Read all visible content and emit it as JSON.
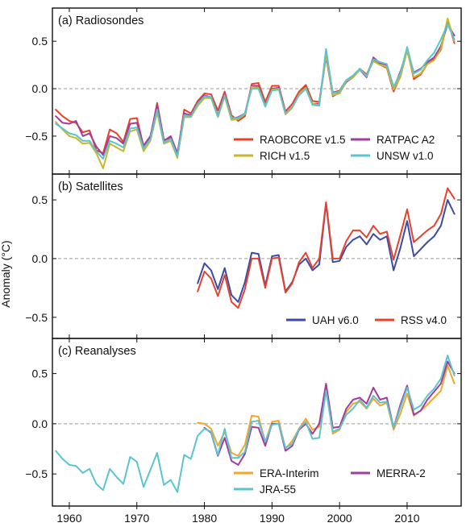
{
  "figure": {
    "ylabel": "Anomaly (°C)",
    "x_ticks": [
      1960,
      1970,
      1980,
      1990,
      2000,
      2010
    ],
    "xlim": [
      1957.5,
      2018
    ]
  },
  "chart_data": [
    {
      "type": "line",
      "title": "(a) Radiosondes",
      "ylim": [
        -0.9,
        0.85
      ],
      "y_ticks": [
        -0.5,
        0.0,
        0.5
      ],
      "y_tick_labels": [
        "−0.5",
        "0.0",
        "0.5"
      ],
      "zero_line": true,
      "legend": "bottom-right",
      "series": [
        {
          "name": "RAOBCORE v1.5",
          "color": "#e8412b",
          "start": 1958,
          "values": [
            -0.22,
            -0.29,
            -0.34,
            -0.36,
            -0.46,
            -0.44,
            -0.65,
            -0.68,
            -0.43,
            -0.47,
            -0.56,
            -0.32,
            -0.31,
            -0.61,
            -0.52,
            -0.15,
            -0.54,
            -0.52,
            -0.7,
            -0.22,
            -0.26,
            -0.13,
            -0.05,
            -0.06,
            -0.23,
            -0.03,
            -0.28,
            -0.34,
            -0.29,
            0.05,
            0.06,
            -0.14,
            0.03,
            0.03,
            -0.24,
            -0.16,
            -0.03,
            0.04,
            -0.13,
            -0.14,
            0.36,
            -0.04,
            -0.02,
            0.09,
            0.13,
            0.21,
            0.15,
            0.3,
            0.25,
            0.22,
            -0.03,
            0.13,
            0.42,
            0.1,
            0.15,
            0.26,
            0.31,
            0.41,
            0.73,
            0.48
          ]
        },
        {
          "name": "RATPAC A2",
          "color": "#a23d9e",
          "start": 1958,
          "values": [
            -0.29,
            -0.36,
            -0.37,
            -0.34,
            -0.5,
            -0.47,
            -0.61,
            -0.7,
            -0.5,
            -0.52,
            -0.58,
            -0.37,
            -0.36,
            -0.6,
            -0.5,
            -0.18,
            -0.55,
            -0.5,
            -0.68,
            -0.26,
            -0.28,
            -0.15,
            -0.07,
            -0.09,
            -0.28,
            -0.06,
            -0.32,
            -0.3,
            -0.26,
            0.03,
            0.03,
            -0.17,
            0.0,
            0.01,
            -0.27,
            -0.2,
            -0.06,
            0.02,
            -0.16,
            -0.16,
            0.34,
            -0.08,
            -0.04,
            0.07,
            0.12,
            0.2,
            0.12,
            0.33,
            0.27,
            0.25,
            0.0,
            0.18,
            0.4,
            0.17,
            0.21,
            0.28,
            0.33,
            0.45,
            0.68,
            0.56
          ]
        },
        {
          "name": "RICH v1.5",
          "color": "#c9b62a",
          "start": 1958,
          "values": [
            -0.35,
            -0.43,
            -0.5,
            -0.52,
            -0.58,
            -0.57,
            -0.68,
            -0.84,
            -0.58,
            -0.62,
            -0.66,
            -0.45,
            -0.43,
            -0.66,
            -0.55,
            -0.25,
            -0.58,
            -0.55,
            -0.73,
            -0.3,
            -0.3,
            -0.18,
            -0.1,
            -0.1,
            -0.3,
            -0.08,
            -0.33,
            -0.32,
            -0.27,
            0.02,
            0.01,
            -0.18,
            -0.01,
            0.0,
            -0.27,
            -0.2,
            -0.06,
            0.01,
            -0.16,
            -0.17,
            0.36,
            -0.07,
            -0.05,
            0.08,
            0.12,
            0.2,
            0.14,
            0.29,
            0.25,
            0.23,
            -0.01,
            0.12,
            0.4,
            0.12,
            0.16,
            0.26,
            0.3,
            0.42,
            0.74,
            0.5
          ]
        },
        {
          "name": "UNSW v1.0",
          "color": "#5ac4d0",
          "start": 1958,
          "values": [
            -0.37,
            -0.42,
            -0.47,
            -0.49,
            -0.55,
            -0.55,
            -0.66,
            -0.74,
            -0.55,
            -0.58,
            -0.62,
            -0.42,
            -0.41,
            -0.63,
            -0.53,
            -0.22,
            -0.57,
            -0.53,
            -0.71,
            -0.28,
            -0.29,
            -0.16,
            -0.08,
            -0.09,
            -0.29,
            -0.07,
            -0.31,
            -0.31,
            -0.26,
            0.0,
            0.0,
            -0.19,
            -0.02,
            -0.01,
            -0.26,
            -0.19,
            -0.07,
            0.0,
            -0.17,
            -0.18,
            0.42,
            -0.05,
            -0.03,
            0.09,
            0.14,
            0.21,
            0.13,
            0.31,
            0.28,
            0.26,
            0.02,
            0.16,
            0.44,
            0.16,
            0.2,
            0.3,
            0.38,
            0.52,
            0.68,
            0.52
          ]
        }
      ]
    },
    {
      "type": "line",
      "title": "(b) Satellites",
      "ylim": [
        -0.68,
        0.72
      ],
      "y_ticks": [
        -0.5,
        0.0,
        0.5
      ],
      "y_tick_labels": [
        "−0.5",
        "0.0",
        "0.5"
      ],
      "zero_line": true,
      "legend": "bottom-right",
      "series": [
        {
          "name": "UAH v6.0",
          "color": "#3b4ba8",
          "start": 1979,
          "values": [
            -0.21,
            -0.04,
            -0.1,
            -0.26,
            -0.08,
            -0.31,
            -0.37,
            -0.2,
            0.05,
            0.04,
            -0.23,
            0.02,
            0.03,
            -0.28,
            -0.2,
            -0.05,
            0.0,
            -0.1,
            -0.05,
            0.47,
            -0.03,
            -0.02,
            0.1,
            0.16,
            0.19,
            0.12,
            0.21,
            0.16,
            0.19,
            -0.1,
            0.09,
            0.32,
            0.02,
            0.08,
            0.14,
            0.19,
            0.28,
            0.5,
            0.38
          ]
        },
        {
          "name": "RSS v4.0",
          "color": "#e8412b",
          "start": 1979,
          "values": [
            -0.28,
            -0.11,
            -0.17,
            -0.32,
            -0.14,
            -0.37,
            -0.42,
            -0.26,
            0.0,
            0.0,
            -0.25,
            0.0,
            0.01,
            -0.29,
            -0.21,
            -0.03,
            0.05,
            -0.08,
            0.0,
            0.48,
            0.0,
            0.0,
            0.15,
            0.24,
            0.24,
            0.18,
            0.28,
            0.21,
            0.23,
            -0.01,
            0.2,
            0.42,
            0.14,
            0.19,
            0.24,
            0.28,
            0.38,
            0.6,
            0.51
          ]
        }
      ]
    },
    {
      "type": "line",
      "title": "(c) Reanalyses",
      "ylim": [
        -0.82,
        0.85
      ],
      "y_ticks": [
        -0.5,
        0.0,
        0.5
      ],
      "y_tick_labels": [
        "−0.5",
        "0.0",
        "0.5"
      ],
      "zero_line": true,
      "legend": "bottom-right",
      "series": [
        {
          "name": "ERA-Interim",
          "color": "#f0a72a",
          "start": 1979,
          "values": [
            0.01,
            0.0,
            -0.05,
            -0.22,
            -0.08,
            -0.29,
            -0.32,
            -0.21,
            0.08,
            0.07,
            -0.18,
            0.02,
            0.03,
            -0.25,
            -0.17,
            -0.05,
            0.05,
            -0.06,
            -0.03,
            0.35,
            -0.1,
            -0.06,
            0.12,
            0.2,
            0.22,
            0.15,
            0.25,
            0.18,
            0.21,
            -0.06,
            0.1,
            0.3,
            0.08,
            0.13,
            0.19,
            0.26,
            0.33,
            0.58,
            0.4
          ]
        },
        {
          "name": "MERRA-2",
          "color": "#a23d9e",
          "start": 1980,
          "values": [
            -0.04,
            -0.09,
            -0.32,
            -0.14,
            -0.37,
            -0.41,
            -0.3,
            -0.03,
            -0.04,
            -0.22,
            0.0,
            0.0,
            -0.27,
            -0.22,
            -0.06,
            0.0,
            -0.1,
            0.0,
            0.4,
            -0.04,
            -0.03,
            0.15,
            0.24,
            0.26,
            0.2,
            0.36,
            0.24,
            0.26,
            -0.04,
            0.19,
            0.38,
            0.09,
            0.13,
            0.24,
            0.32,
            0.4,
            0.62,
            0.5
          ]
        },
        {
          "name": "JRA-55",
          "color": "#5ac4d0",
          "start": 1958,
          "values": [
            -0.27,
            -0.35,
            -0.41,
            -0.42,
            -0.49,
            -0.45,
            -0.6,
            -0.66,
            -0.45,
            -0.53,
            -0.6,
            -0.33,
            -0.38,
            -0.63,
            -0.46,
            -0.29,
            -0.61,
            -0.56,
            -0.68,
            -0.31,
            -0.35,
            -0.12,
            -0.05,
            -0.08,
            -0.31,
            -0.05,
            -0.34,
            -0.34,
            -0.28,
            0.02,
            0.03,
            -0.18,
            -0.01,
            0.0,
            -0.24,
            -0.2,
            -0.05,
            0.02,
            -0.15,
            -0.14,
            0.33,
            -0.08,
            -0.05,
            0.09,
            0.15,
            0.24,
            0.16,
            0.28,
            0.21,
            0.22,
            -0.04,
            0.16,
            0.36,
            0.14,
            0.18,
            0.28,
            0.35,
            0.45,
            0.68,
            0.48
          ]
        }
      ]
    }
  ]
}
